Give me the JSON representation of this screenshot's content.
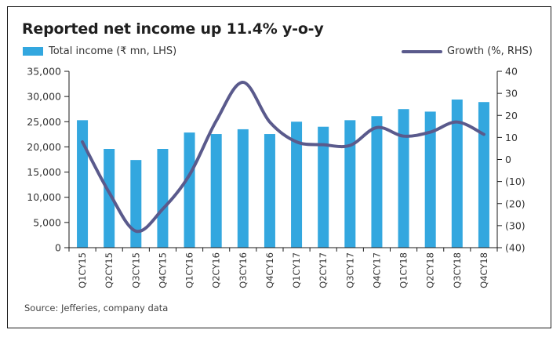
{
  "title": "Reported net income up 11.4% y-o-y",
  "source": "Source: Jefferies, company data",
  "colors": {
    "bar": "#33a7df",
    "line": "#5a5a8c",
    "axis": "#1a1a1a",
    "text": "#333333"
  },
  "chart_data": {
    "type": "bar+line",
    "title": "Reported net income up 11.4% y-o-y",
    "categories": [
      "Q1CY15",
      "Q2CY15",
      "Q3CY15",
      "Q4CY15",
      "Q1CY16",
      "Q2CY16",
      "Q3CY16",
      "Q4CY16",
      "Q1CY17",
      "Q2CY17",
      "Q3CY17",
      "Q4CY17",
      "Q1CY18",
      "Q2CY18",
      "Q3CY18",
      "Q4CY18"
    ],
    "series": [
      {
        "name": "Total income (₹ mn, LHS)",
        "type": "bar",
        "axis": "left",
        "values": [
          25300,
          19600,
          17400,
          19600,
          22850,
          22550,
          23500,
          22550,
          25000,
          24000,
          25300,
          26100,
          27500,
          27000,
          29400,
          28900
        ]
      },
      {
        "name": "Growth (%, RHS)",
        "type": "line",
        "axis": "right",
        "smooth": true,
        "values": [
          8,
          -15,
          -32.5,
          -22.5,
          -7,
          17.5,
          35,
          17,
          8,
          6.7,
          6.4,
          14.5,
          10.6,
          12.4,
          17,
          11.4
        ]
      }
    ],
    "left_axis": {
      "label": "",
      "range": [
        0,
        35000
      ],
      "ticks": [
        0,
        5000,
        10000,
        15000,
        20000,
        25000,
        30000,
        35000
      ],
      "tick_labels": [
        "0",
        "5,000",
        "10,000",
        "15,000",
        "20,000",
        "25,000",
        "30,000",
        "35,000"
      ]
    },
    "right_axis": {
      "label": "",
      "range": [
        -40,
        40
      ],
      "ticks": [
        -40,
        -30,
        -20,
        -10,
        0,
        10,
        20,
        30,
        40
      ],
      "tick_labels": [
        "(40)",
        "(30)",
        "(20)",
        "(10)",
        "0",
        "10",
        "20",
        "30",
        "40"
      ]
    },
    "legend": [
      {
        "label": "Total income (₹ mn, LHS)",
        "placement": "top-left"
      },
      {
        "label": "Growth (%, RHS)",
        "placement": "top-right"
      }
    ],
    "grid": false
  }
}
